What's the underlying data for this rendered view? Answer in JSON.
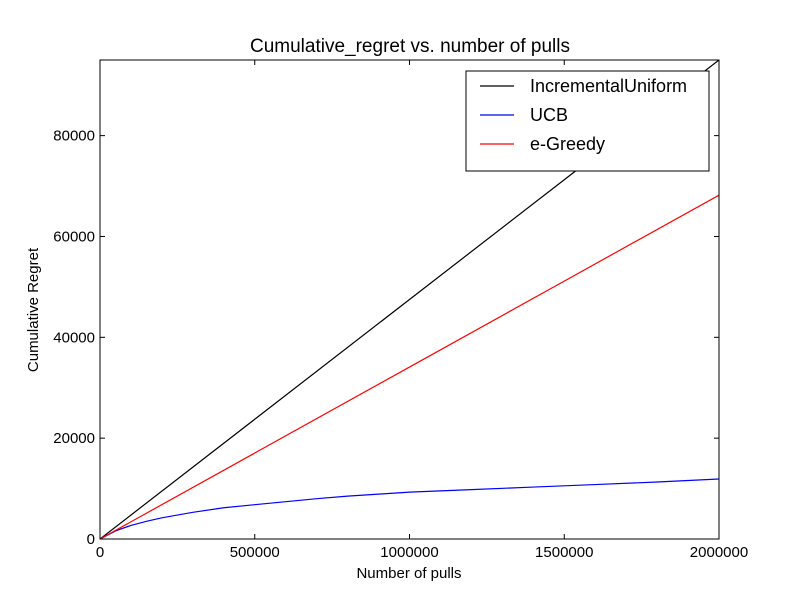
{
  "chart_data": {
    "type": "line",
    "title": "Cumulative_regret vs. number of pulls",
    "xlabel": "Number of pulls",
    "ylabel": "Cumulative Regret",
    "xlim": [
      0,
      2000000
    ],
    "ylim": [
      0,
      95000
    ],
    "xticks": [
      0,
      500000,
      1000000,
      1500000,
      2000000
    ],
    "xtick_labels": [
      "0",
      "500000",
      "1000000",
      "1500000",
      "2000000"
    ],
    "yticks": [
      0,
      20000,
      40000,
      60000,
      80000
    ],
    "ytick_labels": [
      "0",
      "20000",
      "40000",
      "60000",
      "80000"
    ],
    "grid": false,
    "legend_position": "top-right",
    "series": [
      {
        "name": "IncrementalUniform",
        "color": "#000000",
        "x": [
          0,
          500000,
          1000000,
          1500000,
          2000000
        ],
        "y": [
          0,
          23750,
          47500,
          71250,
          95000
        ]
      },
      {
        "name": "UCB",
        "color": "#0000ff",
        "x": [
          0,
          50000,
          100000,
          150000,
          200000,
          300000,
          400000,
          500000,
          600000,
          700000,
          800000,
          900000,
          1000000,
          1200000,
          1400000,
          1600000,
          1800000,
          2000000
        ],
        "y": [
          0,
          1600,
          2700,
          3500,
          4200,
          5300,
          6200,
          6800,
          7400,
          8000,
          8500,
          8900,
          9300,
          9800,
          10300,
          10800,
          11300,
          11900
        ]
      },
      {
        "name": "e-Greedy",
        "color": "#ff0000",
        "x": [
          0,
          500000,
          1000000,
          1500000,
          2000000
        ],
        "y": [
          0,
          17050,
          34100,
          51150,
          68200
        ]
      }
    ]
  }
}
